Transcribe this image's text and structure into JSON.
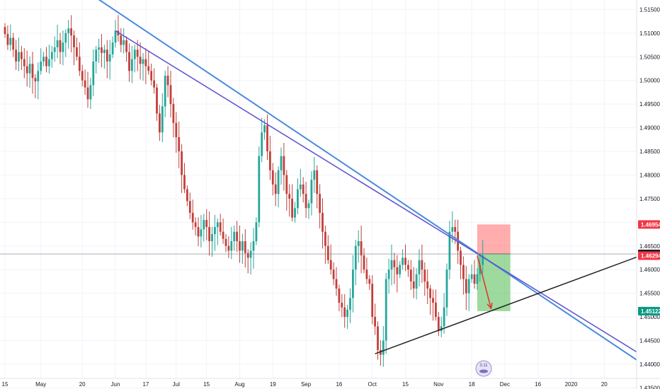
{
  "chart_data": {
    "type": "candlestick",
    "title": "",
    "xlabel": "",
    "ylabel": "",
    "ylim": [
      1.437,
      1.517
    ],
    "grid": true,
    "y_ticks": [
      "1.51500",
      "1.51000",
      "1.50500",
      "1.50000",
      "1.49500",
      "1.49000",
      "1.48500",
      "1.48000",
      "1.47500",
      "1.47000",
      "1.46500",
      "1.46000",
      "1.45500",
      "1.45000",
      "1.44500",
      "1.44000",
      "1.43500"
    ],
    "y_tick_values": [
      1.515,
      1.51,
      1.505,
      1.5,
      1.495,
      1.49,
      1.485,
      1.48,
      1.475,
      1.47,
      1.465,
      1.46,
      1.455,
      1.45,
      1.445,
      1.44,
      1.435
    ],
    "x_ticks": [
      "15",
      "May",
      "20",
      "Jun",
      "17",
      "Jul",
      "15",
      "Aug",
      "19",
      "Sep",
      "16",
      "Oct",
      "15",
      "Nov",
      "18",
      "Dec",
      "16",
      "2020",
      "20"
    ],
    "x_tick_index": [
      0,
      13,
      28,
      40,
      51,
      62,
      73,
      85,
      97,
      109,
      121,
      133,
      145,
      157,
      169,
      181,
      193,
      205,
      217
    ],
    "price_tags": [
      {
        "label": "1.46954",
        "value": 1.46954,
        "color": "#f23645"
      },
      {
        "label": "1.46331",
        "value": 1.46331,
        "color": "#131722"
      },
      {
        "label": "1.46294",
        "value": 1.46294,
        "color": "#f23645"
      },
      {
        "label": "1.45122",
        "value": 1.45122,
        "color": "#089981"
      }
    ],
    "position": {
      "entry": 1.46331,
      "stop": 1.46954,
      "target": 1.45122,
      "start_index": 171,
      "end_index": 183
    },
    "trendlines": [
      {
        "name": "",
        "color": "#4a89dc",
        "points": [
          [
            0,
            1.5304
          ],
          [
            229,
            1.4408
          ]
        ]
      },
      {
        "name": "",
        "color": "#5b4fd1",
        "points": [
          [
            40,
            1.5105
          ],
          [
            229,
            1.4425
          ]
        ]
      },
      {
        "name": "",
        "color": "#222222",
        "points": [
          [
            134,
            1.4422
          ],
          [
            229,
            1.4627
          ]
        ]
      }
    ],
    "arrow": {
      "color": "#e03131",
      "from": [
        171,
        1.463
      ],
      "to": [
        176,
        1.4518
      ]
    },
    "candles": {
      "count": 171,
      "closes": [
        1.5098,
        1.5075,
        1.509,
        1.5065,
        1.504,
        1.506,
        1.5045,
        1.503,
        1.5015,
        1.5035,
        1.5005,
        1.4998,
        1.502,
        1.504,
        1.505,
        1.503,
        1.5045,
        1.506,
        1.507,
        1.5085,
        1.506,
        1.508,
        1.51,
        1.511,
        1.5095,
        1.507,
        1.505,
        1.502,
        1.5,
        1.4985,
        1.496,
        1.499,
        1.504,
        1.5065,
        1.507,
        1.5058,
        1.5065,
        1.504,
        1.5055,
        1.508,
        1.5105,
        1.5095,
        1.5075,
        1.5085,
        1.506,
        1.502,
        1.5045,
        1.5065,
        1.505,
        1.5035,
        1.5045,
        1.503,
        1.502,
        1.5,
        1.4985,
        1.493,
        1.489,
        1.4945,
        1.501,
        1.499,
        1.495,
        1.491,
        1.488,
        1.485,
        1.48,
        1.477,
        1.4745,
        1.472,
        1.47,
        1.469,
        1.467,
        1.4685,
        1.4705,
        1.469,
        1.466,
        1.4675,
        1.469,
        1.47,
        1.468,
        1.4665,
        1.465,
        1.464,
        1.466,
        1.468,
        1.466,
        1.464,
        1.466,
        1.4635,
        1.4625,
        1.464,
        1.466,
        1.47,
        1.484,
        1.489,
        1.4905,
        1.485,
        1.481,
        1.478,
        1.476,
        1.481,
        1.484,
        1.48,
        1.476,
        1.475,
        1.471,
        1.473,
        1.477,
        1.478,
        1.476,
        1.473,
        1.474,
        1.479,
        1.481,
        1.476,
        1.472,
        1.468,
        1.465,
        1.462,
        1.46,
        1.458,
        1.456,
        1.453,
        1.452,
        1.45,
        1.4515,
        1.454,
        1.46,
        1.465,
        1.466,
        1.463,
        1.46,
        1.458,
        1.457,
        1.45,
        1.448,
        1.443,
        1.442,
        1.445,
        1.458,
        1.46,
        1.462,
        1.4605,
        1.459,
        1.461,
        1.4625,
        1.461,
        1.46,
        1.4575,
        1.456,
        1.459,
        1.462,
        1.46,
        1.4575,
        1.456,
        1.454,
        1.453,
        1.45,
        1.447,
        1.448,
        1.452,
        1.46,
        1.468,
        1.469,
        1.468,
        1.464,
        1.461,
        1.458,
        1.455,
        1.458,
        1.459,
        1.457,
        1.459,
        1.461,
        1.463
      ]
    }
  },
  "watermark": {
    "text": "3.11"
  }
}
